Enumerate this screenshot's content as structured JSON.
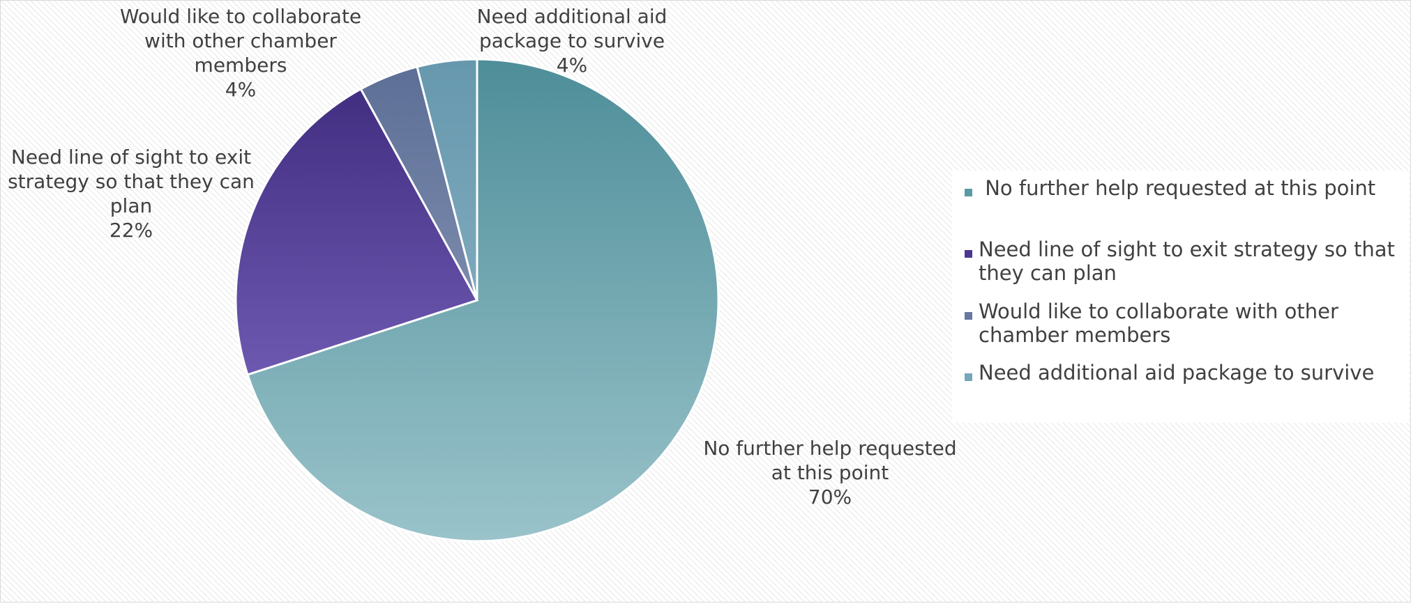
{
  "chart_data": {
    "type": "pie",
    "title": "",
    "legend_position": "right",
    "slices": [
      {
        "label": "No further help requested at this point",
        "value": 70,
        "percent_label": "70%",
        "data_label_lines": [
          "No further help requested",
          "at this point"
        ],
        "legend_lines": [
          " No further help requested at this point"
        ],
        "color_top": "#4E8E99",
        "color_bottom": "#9AC3CA",
        "legend_color": "#5A9AA4"
      },
      {
        "label": "Need line of sight to exit strategy so that they can plan",
        "value": 22,
        "percent_label": "22%",
        "data_label_lines": [
          "Need line of sight to exit",
          "strategy so that they can",
          "plan"
        ],
        "legend_lines": [
          "Need line of sight to exit strategy so that",
          "they can plan"
        ],
        "color_top": "#3D2A7C",
        "color_bottom": "#8771CC",
        "legend_color": "#4B3790"
      },
      {
        "label": "Would like to collaborate with other chamber members",
        "value": 4,
        "percent_label": "4%",
        "data_label_lines": [
          "Would like to collaborate",
          "with other chamber",
          "members"
        ],
        "legend_lines": [
          "Would like to collaborate with other",
          "chamber members"
        ],
        "color_top": "#5C6E96",
        "color_bottom": "#9AA6C2",
        "legend_color": "#68789E"
      },
      {
        "label": "Need additional aid package to survive",
        "value": 4,
        "percent_label": "4%",
        "data_label_lines": [
          "Need additional aid",
          "package to survive"
        ],
        "legend_lines": [
          "Need additional aid package to survive"
        ],
        "color_top": "#6698AE",
        "color_bottom": "#98BACB",
        "legend_color": "#76A6BA"
      }
    ]
  }
}
